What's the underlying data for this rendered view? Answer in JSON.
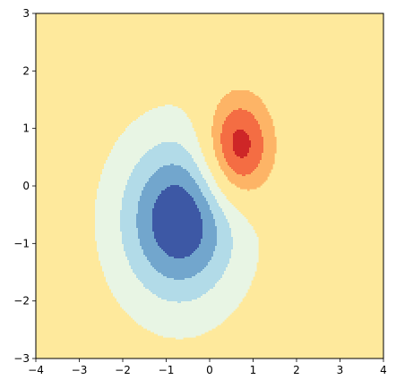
{
  "chart_data": {
    "type": "contourf",
    "title": "",
    "xlabel": "",
    "ylabel": "",
    "xlim": [
      -4,
      4
    ],
    "ylim": [
      -3,
      3
    ],
    "grid": false,
    "legend": "none",
    "x_ticks": [
      -4,
      -3,
      -2,
      -1,
      0,
      1,
      2,
      3,
      4
    ],
    "y_ticks": [
      -3,
      -2,
      -1,
      0,
      1,
      2,
      3
    ],
    "x_tick_labels": [
      "−4",
      "−3",
      "−2",
      "−1",
      "0",
      "1",
      "2",
      "3",
      "4"
    ],
    "y_tick_labels": [
      "−3",
      "−2",
      "−1",
      "0",
      "1",
      "2",
      "3"
    ],
    "colormap": "RdYlBu_r",
    "background_level_color": "#fee99c",
    "blobs": [
      {
        "name": "positive-peak",
        "center": [
          0.65,
          0.65
        ],
        "sigma": [
          0.55,
          0.65
        ],
        "amplitude": 1.0
      },
      {
        "name": "negative-trough",
        "center": [
          -0.7,
          -0.6
        ],
        "sigma": [
          1.0,
          1.05
        ],
        "amplitude": -1.0
      }
    ],
    "levels": [
      {
        "min": 0.75,
        "color": "#ce2627"
      },
      {
        "min": 0.5,
        "color": "#f46d43"
      },
      {
        "min": 0.25,
        "color": "#fdb466"
      },
      {
        "min": -0.15,
        "color": "#fee99c"
      },
      {
        "min": -0.4,
        "color": "#e8f5e4"
      },
      {
        "min": -0.62,
        "color": "#b2dbe8"
      },
      {
        "min": -0.82,
        "color": "#72a6cd"
      },
      {
        "min": -10,
        "color": "#3d58a5"
      }
    ]
  }
}
